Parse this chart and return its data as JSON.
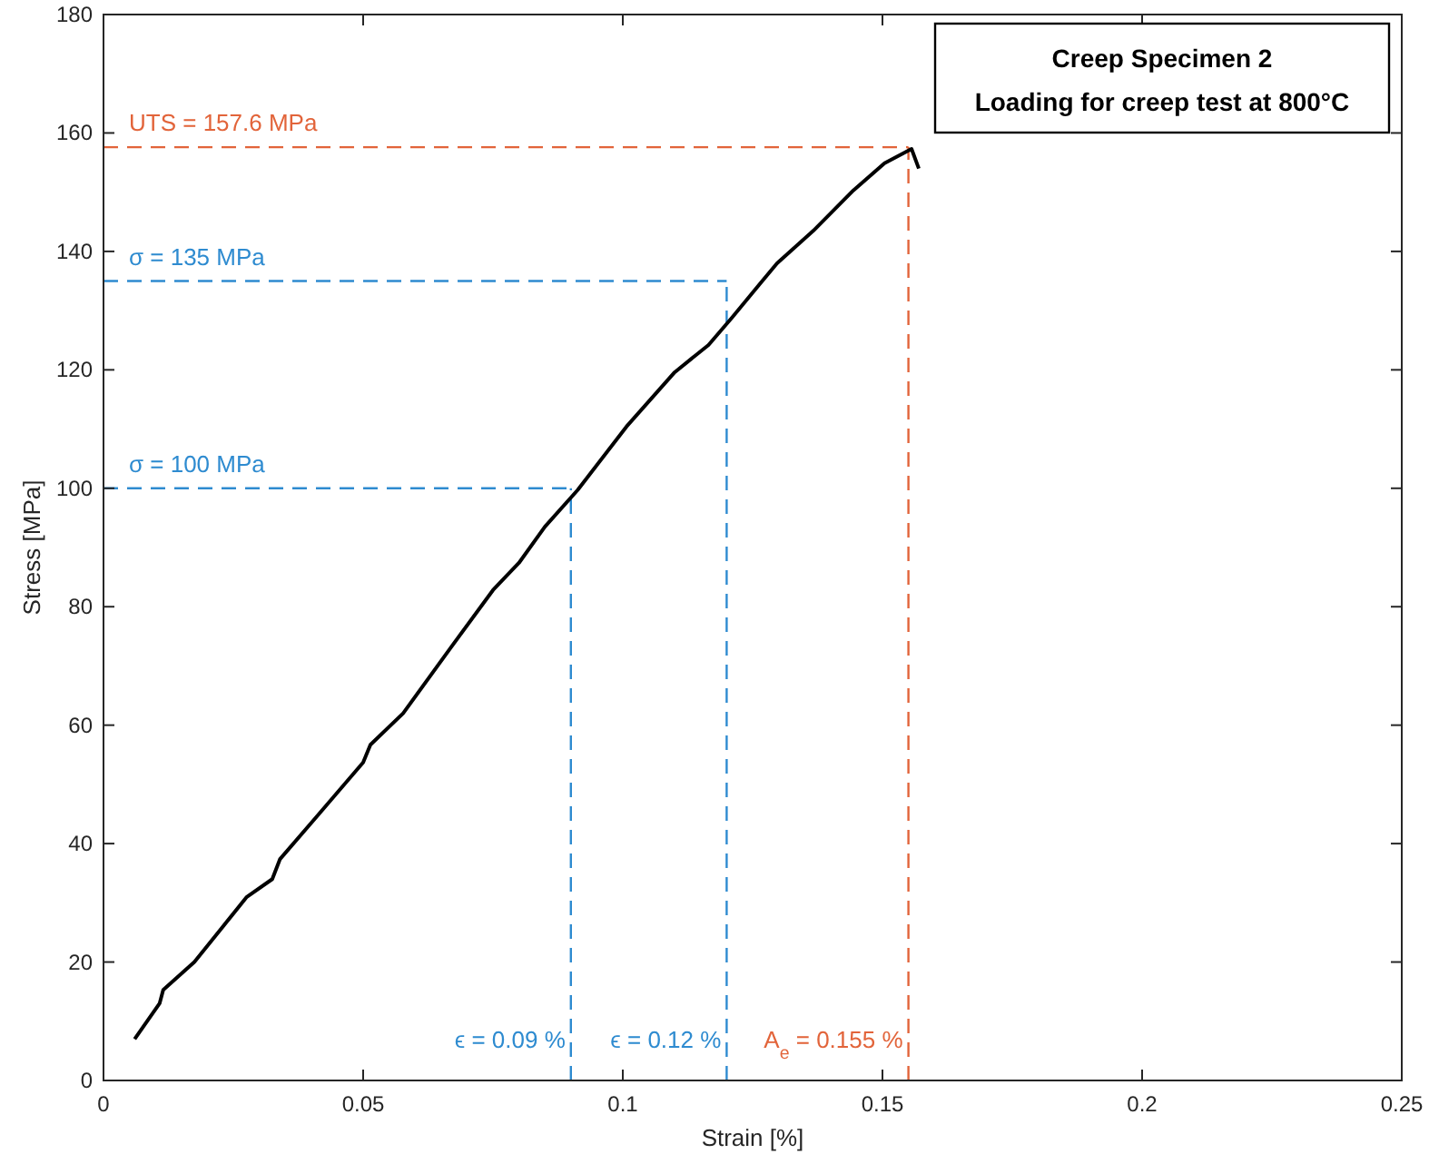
{
  "chart_data": {
    "type": "line",
    "title": "Creep Specimen 2",
    "subtitle": "Loading for creep test at 800°C",
    "xlabel": "Strain [%]",
    "ylabel": "Stress [MPa]",
    "xlim": [
      0,
      0.25
    ],
    "xticks": [
      0,
      0.05,
      0.1,
      0.15,
      0.2,
      0.25
    ],
    "ylim": [
      0,
      180
    ],
    "yticks": [
      0,
      20,
      40,
      60,
      80,
      100,
      120,
      140,
      160,
      180
    ],
    "grid": false,
    "marker": "none",
    "line_style": "solid",
    "series": [
      {
        "color": "#000000",
        "x": [
          0.006,
          0.0108,
          0.0115,
          0.0175,
          0.023,
          0.0276,
          0.0325,
          0.034,
          0.041,
          0.05,
          0.0514,
          0.0577,
          0.0668,
          0.075,
          0.08,
          0.085,
          0.0913,
          0.1007,
          0.11,
          0.1165,
          0.121,
          0.1262,
          0.1297,
          0.1367,
          0.1444,
          0.1504,
          0.1556,
          0.157
        ],
        "values": [
          7,
          13,
          15.3,
          20,
          26,
          31,
          34,
          37.4,
          44.5,
          53.7,
          56.7,
          62,
          73,
          82.8,
          87.4,
          93.5,
          99.7,
          110.4,
          119.6,
          124.2,
          128.8,
          134.3,
          138,
          143.5,
          150.3,
          154.9,
          157.3,
          154
        ]
      }
    ],
    "ref_lines": [
      {
        "axis": "y",
        "value": 100,
        "label": "σ = 100 MPa",
        "color": "#2e8bd0",
        "line_style": "dashed"
      },
      {
        "axis": "x",
        "value": 0.09,
        "label": "ϵ = 0.09 %",
        "color": "#2e8bd0",
        "line_style": "dashed"
      },
      {
        "axis": "y",
        "value": 135,
        "label": "σ = 135 MPa",
        "color": "#2e8bd0",
        "line_style": "dashed"
      },
      {
        "axis": "x",
        "value": 0.12,
        "label": "ϵ = 0.12 %",
        "color": "#2e8bd0",
        "line_style": "dashed"
      },
      {
        "axis": "y",
        "value": 157.6,
        "label": "UTS = 157.6 MPa",
        "color": "#e2643a",
        "line_style": "dashed"
      },
      {
        "axis": "x",
        "value": 0.155,
        "label": "A$_{e}$ = 0.155 %",
        "color": "#e2643a",
        "line_style": "dashed"
      }
    ]
  }
}
